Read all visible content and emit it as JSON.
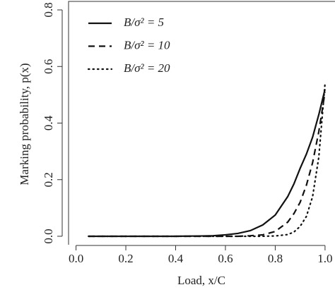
{
  "chart_data": {
    "type": "line",
    "xlabel": "Load, x/C",
    "ylabel": "Marking probability, p(x)",
    "x": [
      0.05,
      0.2,
      0.4,
      0.5,
      0.55,
      0.6,
      0.65,
      0.7,
      0.75,
      0.8,
      0.85,
      0.875,
      0.9,
      0.925,
      0.95,
      0.975,
      1.0
    ],
    "series": [
      {
        "name": "B/σ² = 5",
        "color": "#111111",
        "dash": "solid",
        "values": [
          0,
          0,
          0,
          0.001,
          0.002,
          0.005,
          0.01,
          0.02,
          0.04,
          0.075,
          0.14,
          0.185,
          0.24,
          0.29,
          0.35,
          0.43,
          0.52
        ]
      },
      {
        "name": "B/σ² = 10",
        "color": "#111111",
        "dash": "dashed",
        "values": [
          0,
          0,
          0,
          0,
          0,
          0,
          0,
          0.002,
          0.005,
          0.017,
          0.05,
          0.08,
          0.12,
          0.18,
          0.26,
          0.37,
          0.51
        ]
      },
      {
        "name": "B/σ² = 20",
        "color": "#111111",
        "dash": "dotted",
        "values": [
          0,
          0,
          0,
          0,
          0,
          0,
          0,
          0,
          0,
          0.001,
          0.006,
          0.015,
          0.035,
          0.07,
          0.14,
          0.28,
          0.54
        ]
      }
    ],
    "xlim": [
      -0.03,
      1.04
    ],
    "ylim": [
      -0.03,
      0.83
    ],
    "xticks": [
      {
        "value": 0,
        "label": "0.0"
      },
      {
        "value": 0.2,
        "label": "0.2"
      },
      {
        "value": 0.4,
        "label": "0.4"
      },
      {
        "value": 0.6,
        "label": "0.6"
      },
      {
        "value": 0.8,
        "label": "0.8"
      },
      {
        "value": 1,
        "label": "1.0"
      }
    ],
    "yticks": [
      {
        "value": 0,
        "label": "0.0"
      },
      {
        "value": 0.2,
        "label": "0.2"
      },
      {
        "value": 0.4,
        "label": "0.4"
      },
      {
        "value": 0.6,
        "label": "0.6"
      },
      {
        "value": 0.8,
        "label": "0.8"
      }
    ],
    "legend": "upper left",
    "grid": false
  }
}
